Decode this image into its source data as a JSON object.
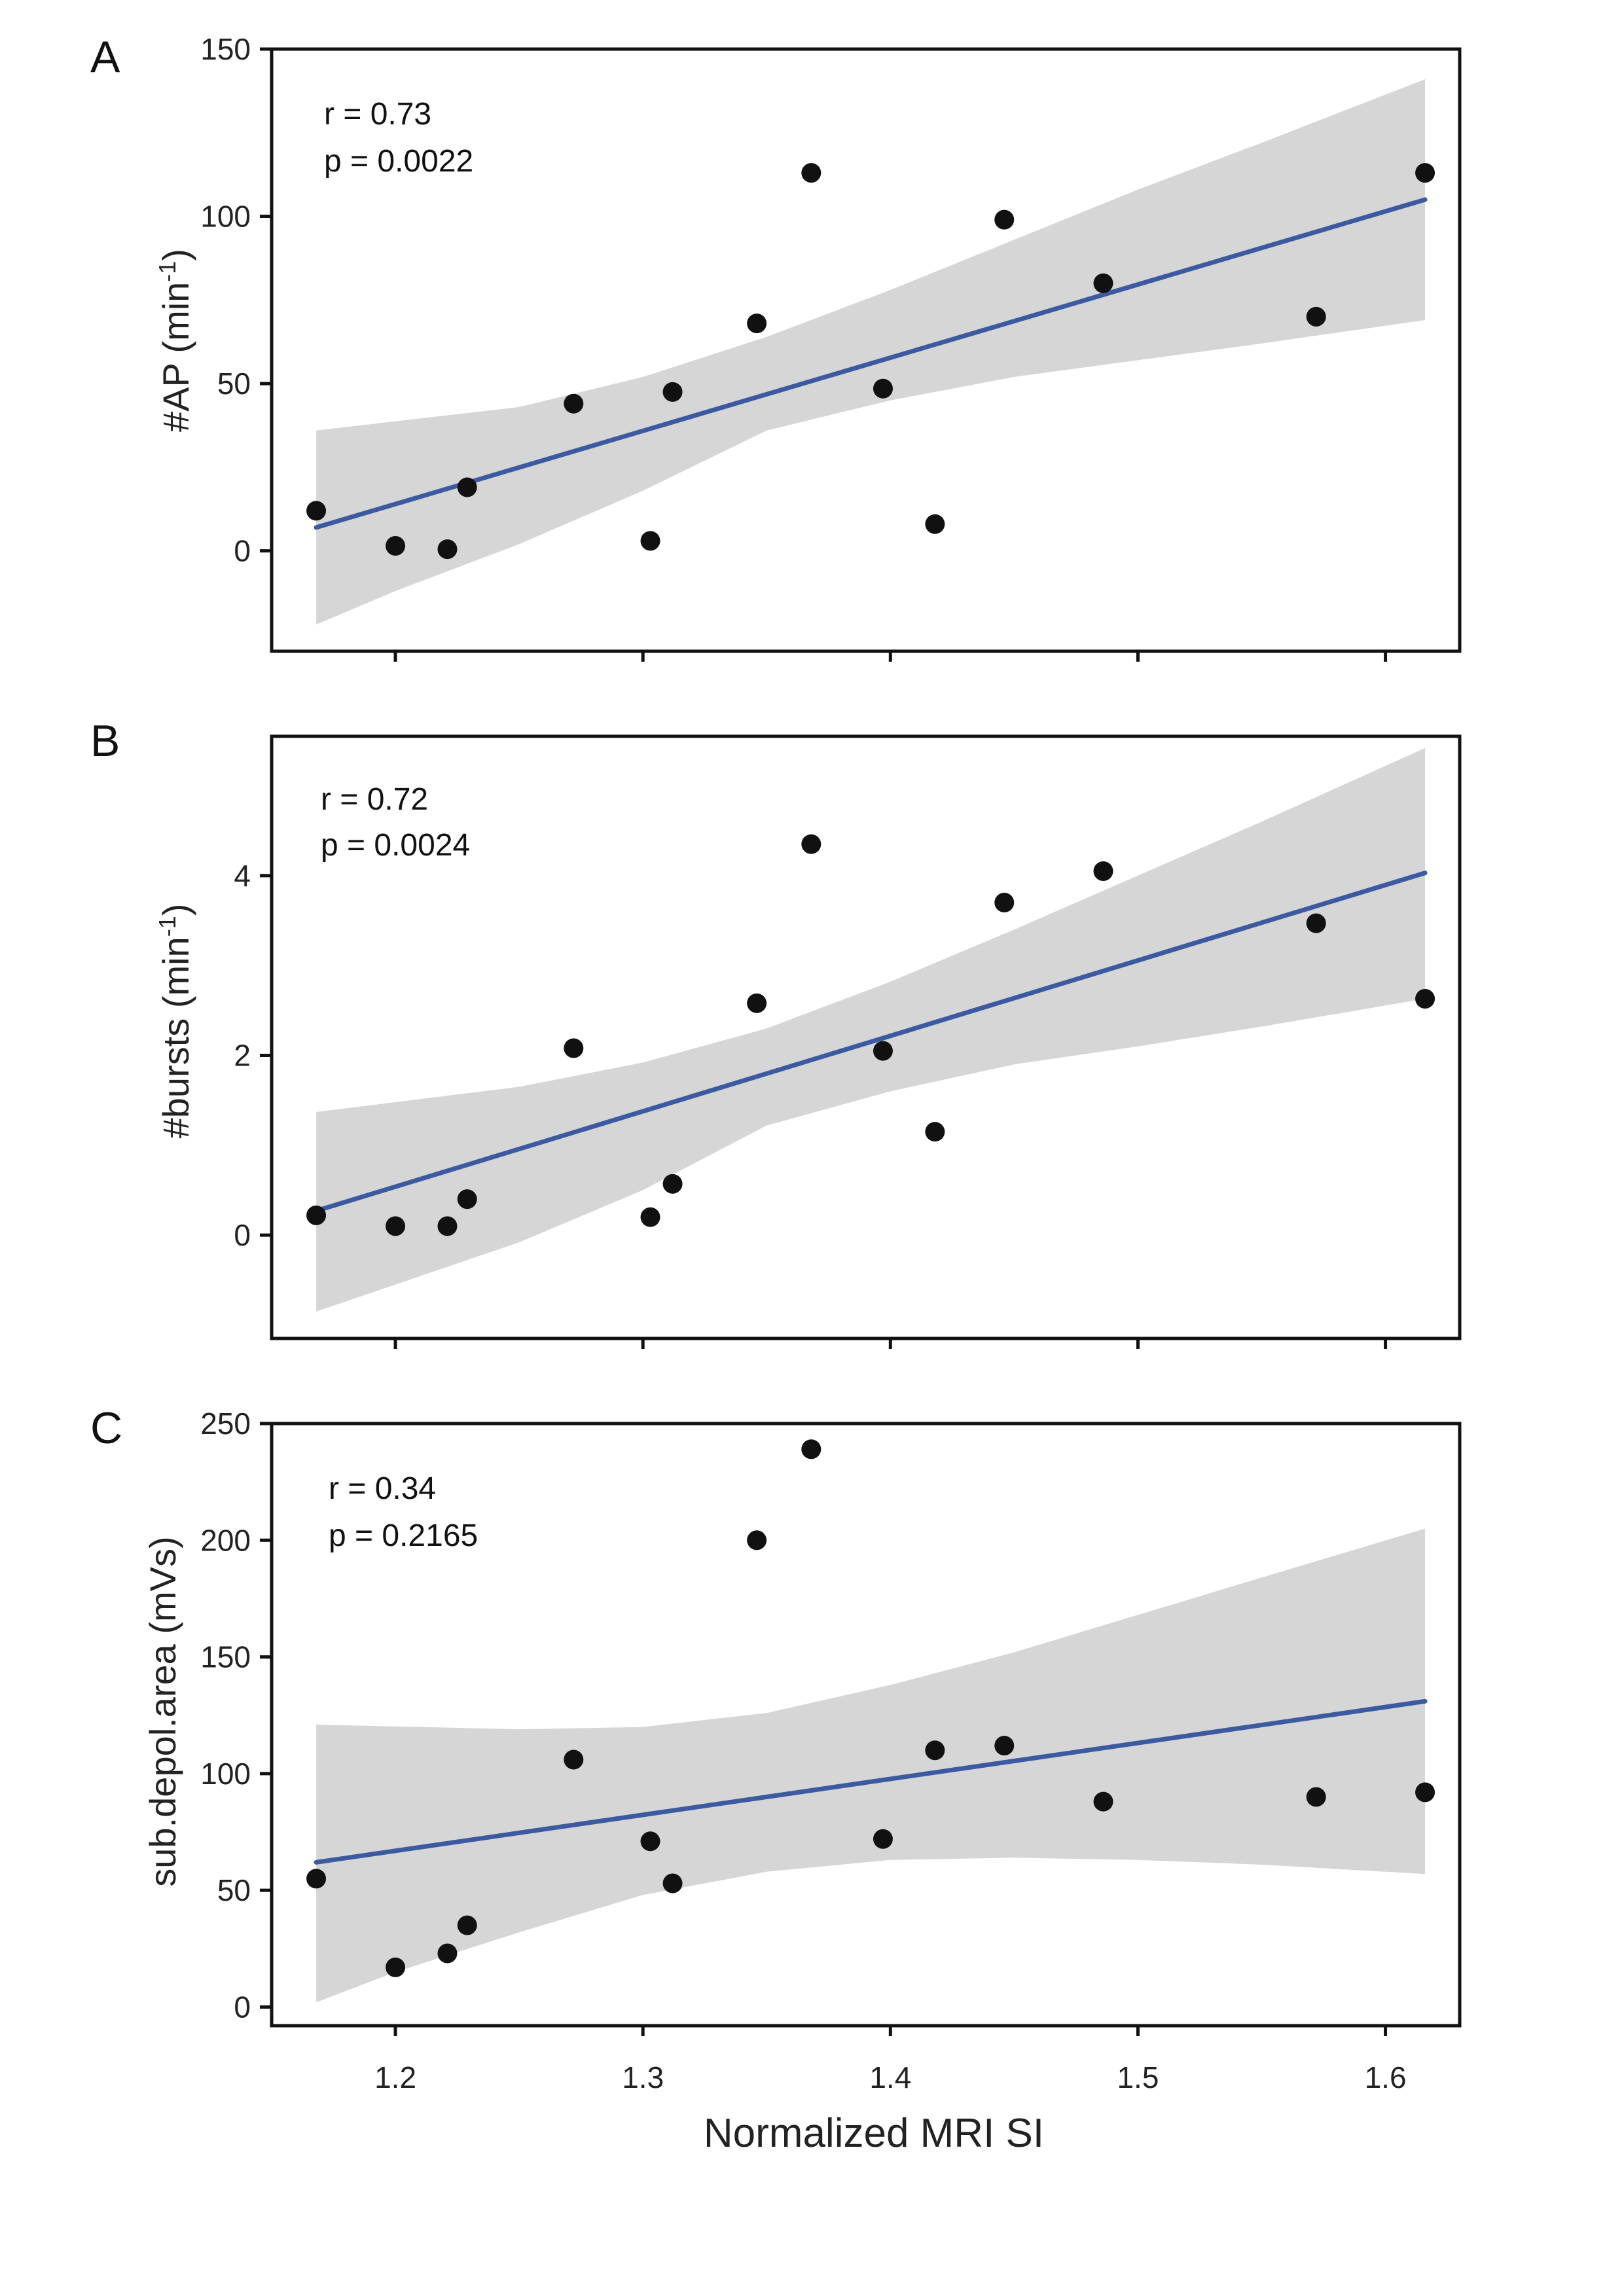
{
  "chart_data": [
    {
      "type": "scatter",
      "panel": "A",
      "ylabel": "#AP (min-1)",
      "ylabel_main": "#AP (min",
      "ylabel_sup": "-1",
      "ylabel_tail": ")",
      "xlabel": "Normalized MRI SI",
      "xlim": [
        1.15,
        1.63
      ],
      "ylim": [
        -30,
        150
      ],
      "yticks": [
        0,
        50,
        100,
        150
      ],
      "xticks": [
        1.2,
        1.3,
        1.4,
        1.5,
        1.6
      ],
      "r_text": "r = 0.73",
      "p_text": "p = 0.0022",
      "x": [
        1.168,
        1.2,
        1.221,
        1.229,
        1.272,
        1.303,
        1.312,
        1.346,
        1.368,
        1.397,
        1.418,
        1.446,
        1.486,
        1.572,
        1.616
      ],
      "y": [
        12,
        1.5,
        0.5,
        19,
        44,
        3,
        47.5,
        68,
        113,
        48.5,
        8,
        99,
        80,
        70,
        113
      ],
      "fit": {
        "x0": 1.168,
        "y0": 7,
        "x1": 1.616,
        "y1": 105
      },
      "band_upper": [
        [
          1.168,
          36
        ],
        [
          1.25,
          43
        ],
        [
          1.3,
          52
        ],
        [
          1.35,
          64
        ],
        [
          1.4,
          78
        ],
        [
          1.45,
          93
        ],
        [
          1.5,
          108
        ],
        [
          1.55,
          122
        ],
        [
          1.616,
          141
        ]
      ],
      "band_lower": [
        [
          1.168,
          -22
        ],
        [
          1.2,
          -12
        ],
        [
          1.25,
          2
        ],
        [
          1.3,
          18
        ],
        [
          1.35,
          36
        ],
        [
          1.4,
          45
        ],
        [
          1.45,
          52
        ],
        [
          1.5,
          57
        ],
        [
          1.55,
          62
        ],
        [
          1.616,
          69
        ]
      ]
    },
    {
      "type": "scatter",
      "panel": "B",
      "ylabel": "#bursts (min-1)",
      "ylabel_main": "#bursts (min",
      "ylabel_sup": "-1",
      "ylabel_tail": ")",
      "xlabel": "Normalized MRI SI",
      "xlim": [
        1.15,
        1.63
      ],
      "ylim": [
        -1.15,
        5.55
      ],
      "yticks": [
        0,
        2,
        4
      ],
      "xticks": [
        1.2,
        1.3,
        1.4,
        1.5,
        1.6
      ],
      "r_text": "r = 0.72",
      "p_text": "p = 0.0024",
      "x": [
        1.168,
        1.2,
        1.221,
        1.229,
        1.272,
        1.303,
        1.312,
        1.346,
        1.368,
        1.397,
        1.418,
        1.446,
        1.486,
        1.572,
        1.616
      ],
      "y": [
        0.22,
        0.1,
        0.1,
        0.4,
        2.08,
        0.2,
        0.57,
        2.58,
        4.35,
        2.05,
        1.15,
        3.7,
        4.05,
        3.47,
        2.63
      ],
      "fit": {
        "x0": 1.168,
        "y0": 0.27,
        "x1": 1.616,
        "y1": 4.03
      },
      "band_upper": [
        [
          1.168,
          1.37
        ],
        [
          1.25,
          1.65
        ],
        [
          1.3,
          1.92
        ],
        [
          1.35,
          2.3
        ],
        [
          1.4,
          2.82
        ],
        [
          1.45,
          3.4
        ],
        [
          1.5,
          4.0
        ],
        [
          1.55,
          4.6
        ],
        [
          1.616,
          5.42
        ]
      ],
      "band_lower": [
        [
          1.168,
          -0.85
        ],
        [
          1.2,
          -0.55
        ],
        [
          1.25,
          -0.08
        ],
        [
          1.3,
          0.5
        ],
        [
          1.35,
          1.22
        ],
        [
          1.4,
          1.6
        ],
        [
          1.45,
          1.9
        ],
        [
          1.5,
          2.1
        ],
        [
          1.55,
          2.32
        ],
        [
          1.616,
          2.63
        ]
      ]
    },
    {
      "type": "scatter",
      "panel": "C",
      "ylabel": "sub.depol.area (mVs)",
      "ylabel_main": "sub.depol.area (mVs)",
      "ylabel_sup": "",
      "ylabel_tail": "",
      "xlabel": "Normalized MRI SI",
      "xlim": [
        1.15,
        1.63
      ],
      "ylim": [
        -8,
        250
      ],
      "yticks": [
        0,
        50,
        100,
        150,
        200,
        250
      ],
      "xticks": [
        1.2,
        1.3,
        1.4,
        1.5,
        1.6
      ],
      "xticklabels": [
        "1.2",
        "1.3",
        "1.4",
        "1.5",
        "1.6"
      ],
      "r_text": "r = 0.34",
      "p_text": "p = 0.2165",
      "x": [
        1.168,
        1.2,
        1.221,
        1.229,
        1.272,
        1.303,
        1.312,
        1.346,
        1.368,
        1.397,
        1.418,
        1.446,
        1.486,
        1.572,
        1.616
      ],
      "y": [
        55,
        17,
        23,
        35,
        106,
        71,
        53,
        200,
        239,
        72,
        110,
        112,
        88,
        90,
        92
      ],
      "fit": {
        "x0": 1.168,
        "y0": 62,
        "x1": 1.616,
        "y1": 131
      },
      "band_upper": [
        [
          1.168,
          121
        ],
        [
          1.25,
          119
        ],
        [
          1.3,
          120
        ],
        [
          1.35,
          126
        ],
        [
          1.4,
          138
        ],
        [
          1.45,
          152
        ],
        [
          1.5,
          168
        ],
        [
          1.55,
          184
        ],
        [
          1.616,
          205
        ]
      ],
      "band_lower": [
        [
          1.168,
          2
        ],
        [
          1.2,
          15
        ],
        [
          1.25,
          32
        ],
        [
          1.3,
          48
        ],
        [
          1.35,
          58
        ],
        [
          1.4,
          63
        ],
        [
          1.45,
          64
        ],
        [
          1.5,
          63
        ],
        [
          1.55,
          61
        ],
        [
          1.616,
          57
        ]
      ]
    }
  ]
}
